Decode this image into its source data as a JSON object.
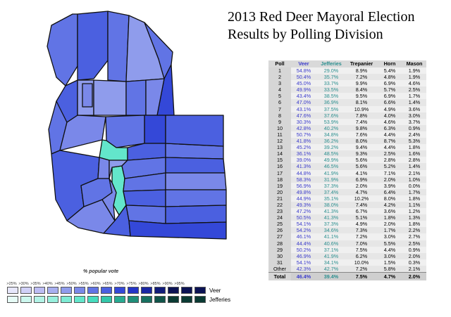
{
  "title": {
    "line1": "2013 Red Deer Mayoral Election",
    "line2": "Results by Polling Division"
  },
  "colors": {
    "veer_scale": [
      "#e6e6fb",
      "#d0d0f7",
      "#bcbcf4",
      "#a8aff0",
      "#8f9cec",
      "#7a88e9",
      "#6174e5",
      "#4b60e0",
      "#3448d8",
      "#2434c7",
      "#1a26a3",
      "#111c7a",
      "#0b1254"
    ],
    "jeff_scale": [
      "#e6fbf6",
      "#ccf7ee",
      "#b2f3e6",
      "#97efdd",
      "#7debd4",
      "#63e6cb",
      "#46dcbe",
      "#33c7aa",
      "#28ab92",
      "#1f8e79",
      "#177060",
      "#105449",
      "#0a3a33"
    ],
    "map_outline": "#101010"
  },
  "legend": {
    "caption": "% popular vote",
    "ticks": [
      ">25%",
      ">30%",
      ">35%",
      ">40%",
      ">45%",
      ">50%",
      ">55%",
      ">60%",
      ">65%",
      ">70%",
      ">75%",
      ">80%",
      ">85%",
      ">90%",
      ">95%"
    ],
    "veer_label": "Veer",
    "jefferies_label": "Jefferies"
  },
  "table": {
    "headers": [
      "Poll",
      "Veer",
      "Jefferies",
      "Trepanier",
      "Horn",
      "Mason"
    ],
    "rows": [
      [
        "1",
        "54.8%",
        "29.0%",
        "8.9%",
        "5.4%",
        "1.9%"
      ],
      [
        "2",
        "50.4%",
        "35.7%",
        "7.2%",
        "4.8%",
        "1.9%"
      ],
      [
        "3",
        "45.0%",
        "33.7%",
        "9.9%",
        "6.9%",
        "4.6%"
      ],
      [
        "4",
        "49.9%",
        "33.5%",
        "8.4%",
        "5.7%",
        "2.5%"
      ],
      [
        "5",
        "43.4%",
        "38.5%",
        "9.5%",
        "6.9%",
        "1.7%"
      ],
      [
        "6",
        "47.0%",
        "36.9%",
        "8.1%",
        "6.6%",
        "1.4%"
      ],
      [
        "7",
        "43.1%",
        "37.5%",
        "10.9%",
        "4.9%",
        "3.6%"
      ],
      [
        "8",
        "47.6%",
        "37.6%",
        "7.8%",
        "4.0%",
        "3.0%"
      ],
      [
        "9",
        "30.3%",
        "53.9%",
        "7.4%",
        "4.6%",
        "3.7%"
      ],
      [
        "10",
        "42.8%",
        "40.2%",
        "9.8%",
        "6.3%",
        "0.9%"
      ],
      [
        "11",
        "50.7%",
        "34.8%",
        "7.6%",
        "4.4%",
        "2.4%"
      ],
      [
        "12",
        "41.8%",
        "36.2%",
        "8.0%",
        "8.7%",
        "5.3%"
      ],
      [
        "13",
        "45.2%",
        "39.2%",
        "9.4%",
        "4.4%",
        "1.8%"
      ],
      [
        "14",
        "36.1%",
        "48.5%",
        "9.3%",
        "2.5%",
        "1.6%"
      ],
      [
        "15",
        "39.0%",
        "49.9%",
        "5.6%",
        "2.8%",
        "2.8%"
      ],
      [
        "16",
        "41.3%",
        "46.5%",
        "5.6%",
        "5.2%",
        "1.4%"
      ],
      [
        "17",
        "44.8%",
        "41.9%",
        "4.1%",
        "7.1%",
        "2.1%"
      ],
      [
        "18",
        "58.3%",
        "31.9%",
        "6.9%",
        "2.0%",
        "1.0%"
      ],
      [
        "19",
        "56.9%",
        "37.3%",
        "2.0%",
        "3.9%",
        "0.0%"
      ],
      [
        "20",
        "49.8%",
        "37.4%",
        "4.7%",
        "6.4%",
        "1.7%"
      ],
      [
        "21",
        "44.9%",
        "35.1%",
        "10.2%",
        "8.0%",
        "1.8%"
      ],
      [
        "22",
        "49.3%",
        "38.0%",
        "7.4%",
        "4.2%",
        "1.1%"
      ],
      [
        "23",
        "47.2%",
        "41.3%",
        "6.7%",
        "3.6%",
        "1.2%"
      ],
      [
        "24",
        "50.5%",
        "41.3%",
        "5.1%",
        "1.8%",
        "1.3%"
      ],
      [
        "25",
        "54.1%",
        "37.3%",
        "4.9%",
        "2.0%",
        "1.8%"
      ],
      [
        "26",
        "54.2%",
        "34.6%",
        "7.3%",
        "1.7%",
        "2.2%"
      ],
      [
        "27",
        "46.1%",
        "41.1%",
        "7.2%",
        "3.0%",
        "2.7%"
      ],
      [
        "28",
        "44.4%",
        "40.6%",
        "7.0%",
        "5.5%",
        "2.5%"
      ],
      [
        "29",
        "50.2%",
        "37.1%",
        "7.5%",
        "4.4%",
        "0.9%"
      ],
      [
        "30",
        "46.9%",
        "41.9%",
        "6.2%",
        "3.0%",
        "2.0%"
      ],
      [
        "31",
        "54.1%",
        "34.1%",
        "10.0%",
        "1.5%",
        "0.3%"
      ],
      [
        "Other",
        "42.3%",
        "42.7%",
        "7.2%",
        "5.8%",
        "2.1%"
      ]
    ],
    "total": [
      "Total",
      "46.4%",
      "39.4%",
      "7.5%",
      "4.7%",
      "2.0%"
    ]
  }
}
